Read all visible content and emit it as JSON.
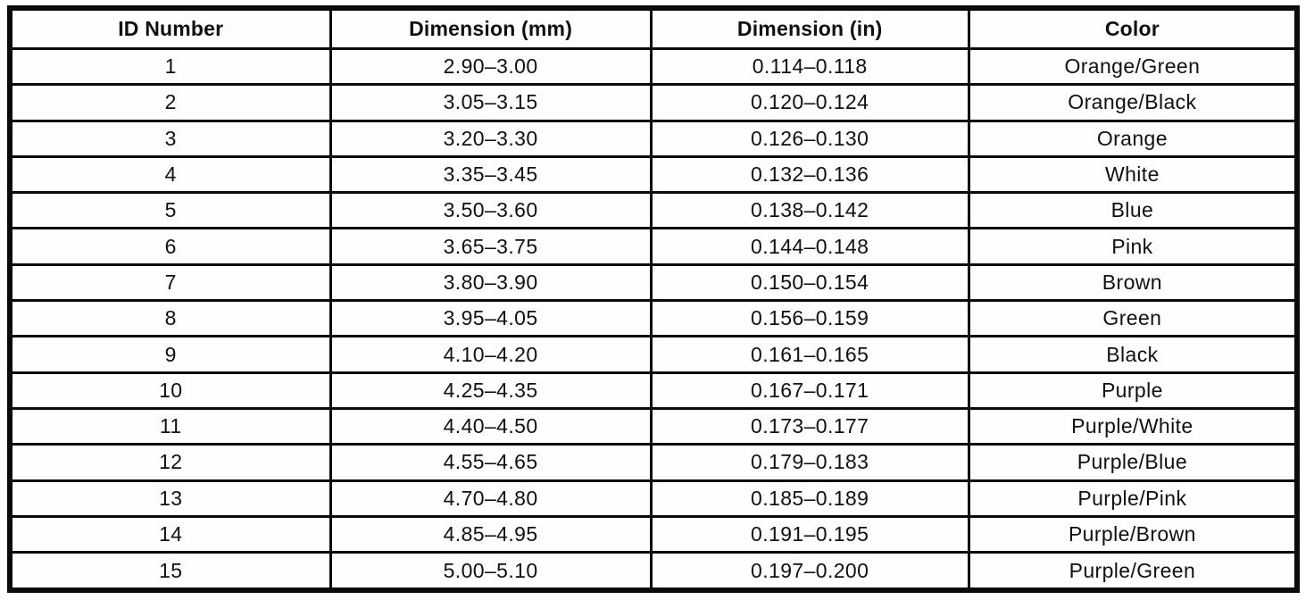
{
  "document": {
    "kind": "scanned-specification-table"
  },
  "colors": {
    "border": "#0b0b0b",
    "text": "#101010",
    "background": "#ffffff"
  },
  "table": {
    "columns": [
      "ID Number",
      "Dimension (mm)",
      "Dimension (in)",
      "Color"
    ],
    "rows": [
      {
        "id": "1",
        "mm": "2.90–3.00",
        "in": "0.114–0.118",
        "color": "Orange/Green"
      },
      {
        "id": "2",
        "mm": "3.05–3.15",
        "in": "0.120–0.124",
        "color": "Orange/Black"
      },
      {
        "id": "3",
        "mm": "3.20–3.30",
        "in": "0.126–0.130",
        "color": "Orange"
      },
      {
        "id": "4",
        "mm": "3.35–3.45",
        "in": "0.132–0.136",
        "color": "White"
      },
      {
        "id": "5",
        "mm": "3.50–3.60",
        "in": "0.138–0.142",
        "color": "Blue"
      },
      {
        "id": "6",
        "mm": "3.65–3.75",
        "in": "0.144–0.148",
        "color": "Pink"
      },
      {
        "id": "7",
        "mm": "3.80–3.90",
        "in": "0.150–0.154",
        "color": "Brown"
      },
      {
        "id": "8",
        "mm": "3.95–4.05",
        "in": "0.156–0.159",
        "color": "Green"
      },
      {
        "id": "9",
        "mm": "4.10–4.20",
        "in": "0.161–0.165",
        "color": "Black"
      },
      {
        "id": "10",
        "mm": "4.25–4.35",
        "in": "0.167–0.171",
        "color": "Purple"
      },
      {
        "id": "11",
        "mm": "4.40–4.50",
        "in": "0.173–0.177",
        "color": "Purple/White"
      },
      {
        "id": "12",
        "mm": "4.55–4.65",
        "in": "0.179–0.183",
        "color": "Purple/Blue"
      },
      {
        "id": "13",
        "mm": "4.70–4.80",
        "in": "0.185–0.189",
        "color": "Purple/Pink"
      },
      {
        "id": "14",
        "mm": "4.85–4.95",
        "in": "0.191–0.195",
        "color": "Purple/Brown"
      },
      {
        "id": "15",
        "mm": "5.00–5.10",
        "in": "0.197–0.200",
        "color": "Purple/Green"
      }
    ]
  }
}
